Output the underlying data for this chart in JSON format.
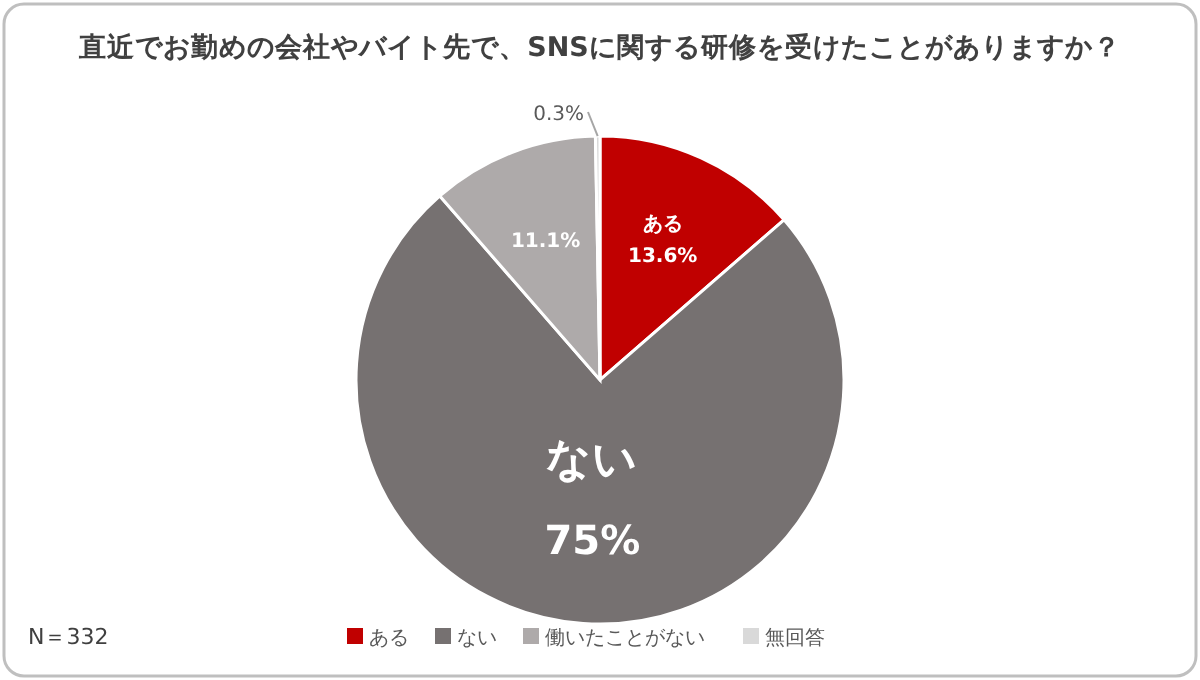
{
  "chart_data": {
    "type": "pie",
    "title": "直近でお勤めの会社やバイト先で、SNSに関する研修を受けたことがありますか？",
    "categories": [
      "ある",
      "ない",
      "働いたことがない",
      "無回答"
    ],
    "values": [
      13.6,
      75,
      11.1,
      0.3
    ],
    "colors": [
      "#c00000",
      "#767171",
      "#aeaaaa",
      "#d9d9d9"
    ],
    "value_labels": [
      "13.6%",
      "75%",
      "11.1%",
      "0.3%"
    ],
    "legend": "bottom",
    "annotations": [
      "N＝332"
    ]
  }
}
